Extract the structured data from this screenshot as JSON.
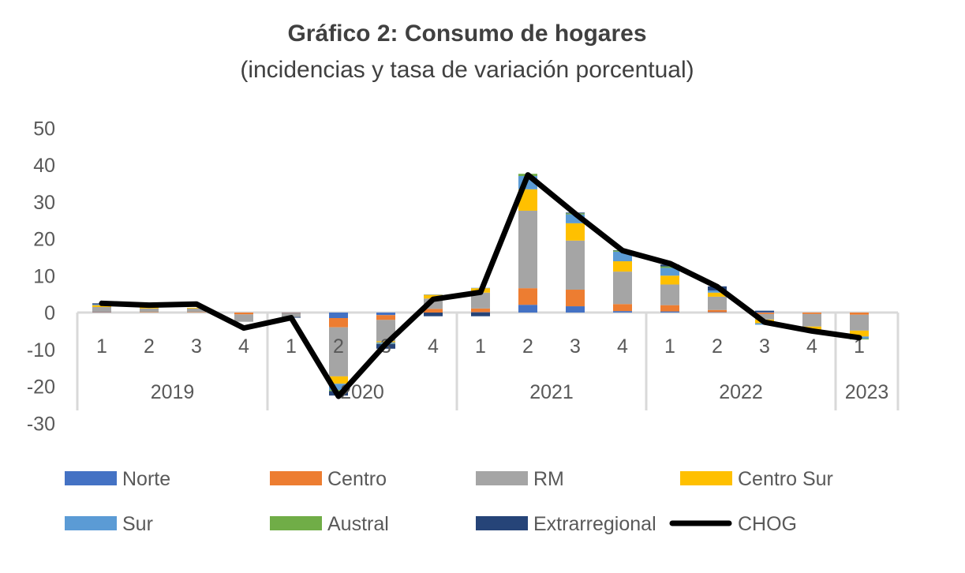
{
  "chart_data": {
    "type": "bar",
    "stacked": true,
    "title": "Gráfico 2: Consumo de hogares",
    "subtitle": "(incidencias y tasa de variación porcentual)",
    "xlabel": "",
    "ylabel": "",
    "ylim": [
      -30,
      50
    ],
    "yticks": [
      50,
      40,
      30,
      20,
      10,
      0,
      -10,
      -20,
      -30
    ],
    "grid": false,
    "legend_position": "bottom",
    "categories": [
      "1",
      "2",
      "3",
      "4",
      "1",
      "2",
      "3",
      "4",
      "1",
      "2",
      "3",
      "4",
      "1",
      "2",
      "3",
      "4",
      "1"
    ],
    "groups": [
      {
        "label": "2019",
        "count": 4
      },
      {
        "label": "2020",
        "count": 4
      },
      {
        "label": "2021",
        "count": 4
      },
      {
        "label": "2022",
        "count": 4
      },
      {
        "label": "2023",
        "count": 1
      }
    ],
    "series": [
      {
        "name": "Norte",
        "color": "#4472C4",
        "type": "bar",
        "values": [
          0.1,
          0.0,
          0.0,
          0.0,
          -0.1,
          -1.5,
          -0.7,
          0.0,
          0.1,
          2.1,
          1.7,
          0.4,
          0.3,
          0.1,
          0.2,
          0.0,
          0.0
        ]
      },
      {
        "name": "Centro",
        "color": "#ED7D31",
        "type": "bar",
        "values": [
          0.1,
          0.1,
          0.1,
          -0.5,
          -0.1,
          -2.5,
          -1.3,
          1.0,
          1.0,
          4.5,
          4.5,
          1.9,
          1.7,
          0.6,
          -0.4,
          -0.4,
          -0.6
        ]
      },
      {
        "name": "RM",
        "color": "#A5A5A5",
        "type": "bar",
        "values": [
          1.3,
          1.0,
          1.0,
          -2.0,
          -1.0,
          -13.3,
          -5.8,
          2.8,
          4.3,
          21.0,
          13.3,
          8.8,
          5.6,
          3.6,
          -1.5,
          -3.4,
          -4.3
        ]
      },
      {
        "name": "Centro Sur",
        "color": "#FFC000",
        "type": "bar",
        "values": [
          0.5,
          0.3,
          0.2,
          0.0,
          0.0,
          -2.0,
          -0.3,
          1.0,
          1.2,
          5.8,
          4.7,
          2.8,
          2.4,
          1.1,
          -1.0,
          -1.0,
          -1.6
        ]
      },
      {
        "name": "Sur",
        "color": "#5B9BD5",
        "type": "bar",
        "values": [
          0.2,
          0.0,
          0.0,
          0.0,
          0.0,
          -1.7,
          -0.3,
          0.1,
          0.1,
          3.6,
          2.4,
          2.6,
          2.1,
          0.6,
          -0.4,
          -0.1,
          -0.6
        ]
      },
      {
        "name": "Austral",
        "color": "#70AD47",
        "type": "bar",
        "values": [
          0.0,
          0.0,
          0.0,
          0.0,
          0.0,
          -0.3,
          -0.1,
          0.0,
          0.0,
          0.6,
          0.3,
          0.3,
          0.4,
          0.0,
          0.0,
          0.0,
          -0.2
        ]
      },
      {
        "name": "Extrarregional",
        "color": "#264478",
        "type": "bar",
        "values": [
          0.3,
          0.0,
          0.0,
          0.0,
          -0.2,
          -1.2,
          -1.3,
          -1.0,
          -1.0,
          0.0,
          0.2,
          0.1,
          0.5,
          1.1,
          0.3,
          0.0,
          0.0
        ]
      },
      {
        "name": "CHOG",
        "color": "#000000",
        "type": "line",
        "values": [
          2.5,
          2.0,
          2.3,
          -4.2,
          -1.4,
          -22.7,
          -8.5,
          3.6,
          5.5,
          37.3,
          26.8,
          16.8,
          13.3,
          7.0,
          -2.6,
          -5.0,
          -6.8
        ]
      }
    ]
  }
}
